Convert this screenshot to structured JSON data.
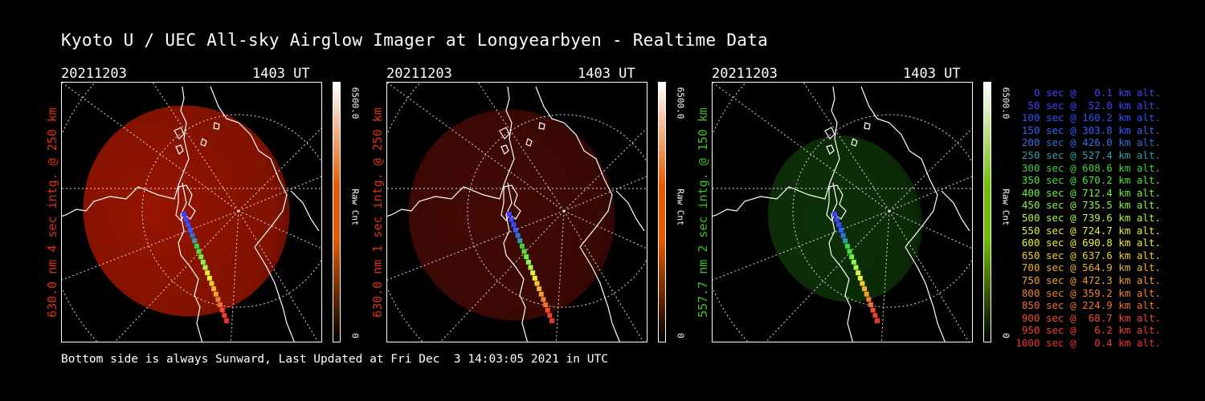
{
  "title": "Kyoto U / UEC All-sky Airglow Imager at Longyearbyen - Realtime Data",
  "footer": "Bottom side is always Sunward, Last Updated at Fri Dec  3 14:03:05 2021 in UTC",
  "panels": [
    {
      "date": "20211203",
      "time": "1403 UT",
      "side_label": "630.0 nm 4 sec intg. @ 250 km",
      "label_color": "#e03010",
      "cbar_max": "6500.0",
      "cbar_unit": "Raw Cnt",
      "cbar_min": "0",
      "glow": "#b01800",
      "glow_opacity": 0.85,
      "cbar_color": "#e85a00"
    },
    {
      "date": "20211203",
      "time": "1403 UT",
      "side_label": "630.0 nm 1 sec intg. @ 250 km",
      "label_color": "#e03010",
      "cbar_max": "6500.0",
      "cbar_unit": "Raw Cnt",
      "cbar_min": "0",
      "glow": "#4a0a04",
      "glow_opacity": 0.9,
      "cbar_color": "#e85a00"
    },
    {
      "date": "20211203",
      "time": "1403 UT",
      "side_label": "557.7 nm 2 sec intg. @ 150 km",
      "label_color": "#40c020",
      "cbar_max": "6500.0",
      "cbar_unit": "Raw Cnt",
      "cbar_min": "0",
      "glow": "#0e3608",
      "glow_opacity": 0.9,
      "cbar_color": "#70c000"
    }
  ],
  "timeline": [
    {
      "text": "0 sec @   0.1 km alt.",
      "color": "#4040ff"
    },
    {
      "text": "50 sec @  52.0 km alt.",
      "color": "#4040ff"
    },
    {
      "text": "100 sec @ 160.2 km alt.",
      "color": "#3050ff"
    },
    {
      "text": "150 sec @ 303.8 km alt.",
      "color": "#3060ff"
    },
    {
      "text": "200 sec @ 426.0 km alt.",
      "color": "#3070e0"
    },
    {
      "text": "250 sec @ 527.4 km alt.",
      "color": "#30a0a0"
    },
    {
      "text": "300 sec @ 608.6 km alt.",
      "color": "#40d040"
    },
    {
      "text": "350 sec @ 670.2 km alt.",
      "color": "#50e040"
    },
    {
      "text": "400 sec @ 712.4 km alt.",
      "color": "#70f040"
    },
    {
      "text": "450 sec @ 735.5 km alt.",
      "color": "#90f050"
    },
    {
      "text": "500 sec @ 739.6 km alt.",
      "color": "#b0f050"
    },
    {
      "text": "550 sec @ 724.7 km alt.",
      "color": "#e0f040"
    },
    {
      "text": "600 sec @ 690.8 km alt.",
      "color": "#f0f030"
    },
    {
      "text": "650 sec @ 637.6 km alt.",
      "color": "#f0d030"
    },
    {
      "text": "700 sec @ 564.9 km alt.",
      "color": "#f0b030"
    },
    {
      "text": "750 sec @ 472.3 km alt.",
      "color": "#f0a030"
    },
    {
      "text": "800 sec @ 359.2 km alt.",
      "color": "#f08030"
    },
    {
      "text": "850 sec @ 224.9 km alt.",
      "color": "#f07030"
    },
    {
      "text": "900 sec @  68.7 km alt.",
      "color": "#f05030"
    },
    {
      "text": "950 sec @   6.2 km alt.",
      "color": "#f04030"
    },
    {
      "text": "1000 sec @   0.4 km alt.",
      "color": "#f03030"
    }
  ]
}
